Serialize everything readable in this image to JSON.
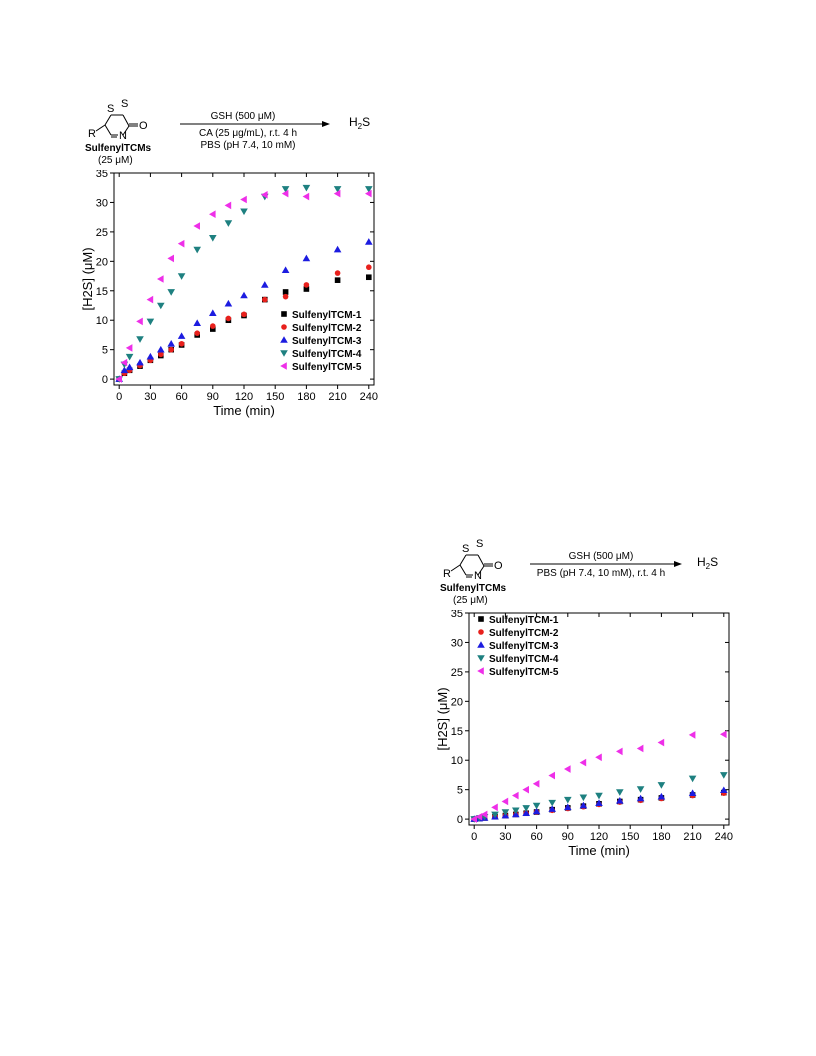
{
  "schemes": [
    {
      "reactant_ring_atoms": {
        "s1": "S",
        "s2": "S",
        "o": "O",
        "n": "N",
        "r": "R"
      },
      "reactant_label": "SulfenylTCMs",
      "reactant_conc": "(25 μM)",
      "conditions_above": "GSH (500 μM)",
      "conditions_below": [
        "CA (25 μg/mL), r.t. 4 h",
        "PBS (pH 7.4, 10 mM)"
      ],
      "product": "H2S"
    },
    {
      "reactant_ring_atoms": {
        "s1": "S",
        "s2": "S",
        "o": "O",
        "n": "N",
        "r": "R"
      },
      "reactant_label": "SulfenylTCMs",
      "reactant_conc": "(25 μM)",
      "conditions_above": "GSH (500 μM)",
      "conditions_below": [
        "PBS (pH 7.4, 10 mM), r.t. 4 h"
      ],
      "product": "H2S"
    }
  ],
  "chart_data": [
    {
      "type": "scatter",
      "xlabel": "Time (min)",
      "ylabel": "[H2S] (μM)",
      "xlim": [
        -5,
        245
      ],
      "ylim": [
        -1,
        35
      ],
      "xticks": [
        0,
        30,
        60,
        90,
        120,
        150,
        180,
        210,
        240
      ],
      "yticks": [
        0,
        5,
        10,
        15,
        20,
        25,
        30,
        35
      ],
      "legend_position": "bottom-right",
      "x": [
        0,
        5,
        10,
        20,
        30,
        40,
        50,
        60,
        75,
        90,
        105,
        120,
        140,
        160,
        180,
        210,
        240
      ],
      "series": [
        {
          "name": "SulfenylTCM-1",
          "marker": "square",
          "color": "#000000",
          "values": [
            0,
            1.0,
            1.5,
            2.2,
            3.2,
            4.0,
            5.0,
            5.8,
            7.5,
            8.5,
            10.0,
            10.8,
            13.5,
            14.8,
            15.3,
            16.8,
            17.3
          ]
        },
        {
          "name": "SulfenylTCM-2",
          "marker": "circle",
          "color": "#e8201c",
          "values": [
            0,
            1.0,
            1.5,
            2.3,
            3.2,
            4.2,
            5.0,
            6.0,
            7.8,
            9.0,
            10.3,
            11.0,
            13.5,
            14.0,
            16.0,
            18.0,
            19.0
          ]
        },
        {
          "name": "SulfenylTCM-3",
          "marker": "triangle-up",
          "color": "#1c1ce0",
          "values": [
            0,
            1.5,
            2.0,
            2.8,
            3.8,
            5.0,
            6.0,
            7.3,
            9.5,
            11.2,
            12.8,
            14.2,
            16.0,
            18.5,
            20.5,
            22.0,
            23.3
          ]
        },
        {
          "name": "SulfenylTCM-4",
          "marker": "triangle-down",
          "color": "#1e8080",
          "values": [
            0,
            2.5,
            3.8,
            6.8,
            9.8,
            12.5,
            14.8,
            17.5,
            22.0,
            24.0,
            26.5,
            28.5,
            31.0,
            32.3,
            32.5,
            32.3,
            32.3
          ]
        },
        {
          "name": "SulfenylTCM-5",
          "marker": "triangle-left",
          "color": "#ee2fe8",
          "values": [
            0,
            2.8,
            5.3,
            9.8,
            13.5,
            17.0,
            20.5,
            23.0,
            26.0,
            28.0,
            29.5,
            30.5,
            31.3,
            31.5,
            31.0,
            31.5,
            31.5
          ]
        }
      ]
    },
    {
      "type": "scatter",
      "xlabel": "Time (min)",
      "ylabel": "[H2S] (μM)",
      "xlim": [
        -5,
        245
      ],
      "ylim": [
        -1,
        35
      ],
      "xticks": [
        0,
        30,
        60,
        90,
        120,
        150,
        180,
        210,
        240
      ],
      "yticks": [
        0,
        5,
        10,
        15,
        20,
        25,
        30,
        35
      ],
      "legend_position": "top-left",
      "x": [
        0,
        5,
        10,
        20,
        30,
        40,
        50,
        60,
        75,
        90,
        105,
        120,
        140,
        160,
        180,
        210,
        240
      ],
      "series": [
        {
          "name": "SulfenylTCM-1",
          "marker": "square",
          "color": "#000000",
          "values": [
            0,
            0.1,
            0.2,
            0.4,
            0.6,
            0.8,
            1.0,
            1.2,
            1.6,
            1.9,
            2.2,
            2.6,
            3.0,
            3.3,
            3.6,
            4.1,
            4.5
          ]
        },
        {
          "name": "SulfenylTCM-2",
          "marker": "circle",
          "color": "#e8201c",
          "values": [
            0,
            0.1,
            0.2,
            0.4,
            0.6,
            0.8,
            1.0,
            1.2,
            1.5,
            1.8,
            2.1,
            2.5,
            2.9,
            3.2,
            3.5,
            4.0,
            4.4
          ]
        },
        {
          "name": "SulfenylTCM-3",
          "marker": "triangle-up",
          "color": "#1c1ce0",
          "values": [
            0,
            0.1,
            0.2,
            0.4,
            0.6,
            0.8,
            1.0,
            1.3,
            1.7,
            2.0,
            2.3,
            2.7,
            3.1,
            3.5,
            3.8,
            4.4,
            4.9
          ]
        },
        {
          "name": "SulfenylTCM-4",
          "marker": "triangle-down",
          "color": "#1e8080",
          "values": [
            0,
            0.2,
            0.4,
            0.8,
            1.2,
            1.5,
            1.9,
            2.3,
            2.8,
            3.3,
            3.7,
            4.0,
            4.6,
            5.1,
            5.8,
            6.9,
            7.5
          ]
        },
        {
          "name": "SulfenylTCM-5",
          "marker": "triangle-left",
          "color": "#ee2fe8",
          "values": [
            0,
            0.4,
            0.8,
            2.0,
            3.0,
            4.0,
            5.0,
            6.0,
            7.4,
            8.5,
            9.6,
            10.5,
            11.5,
            12.0,
            13.0,
            14.3,
            14.4
          ]
        }
      ]
    }
  ]
}
